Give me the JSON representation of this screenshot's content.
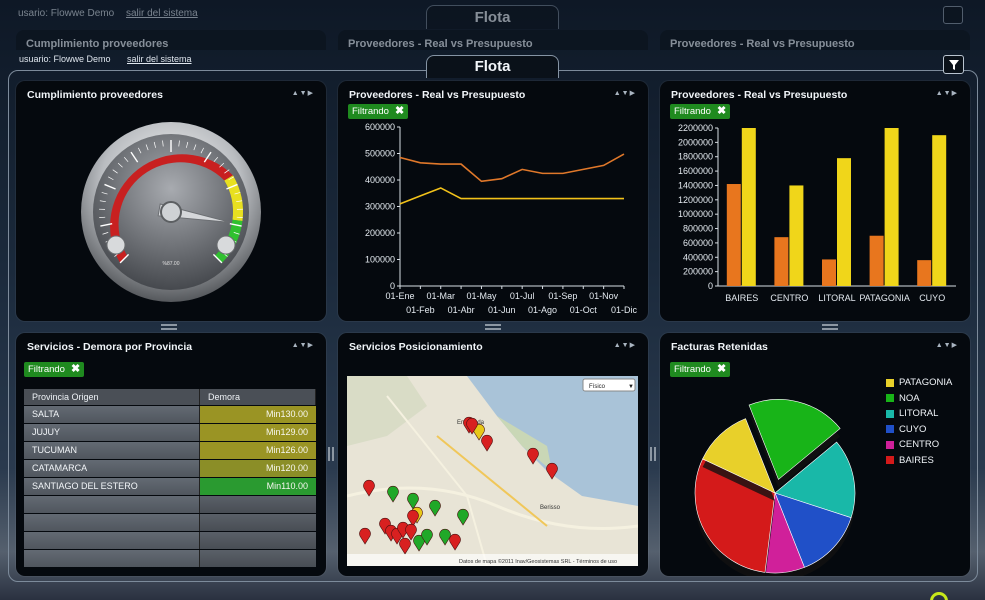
{
  "header": {
    "user_label": "usuario: Flowwe Demo",
    "logout_label": "salir del sistema",
    "title": "Flota",
    "ghost_user_label": "usario: Flowwe Demo",
    "ghost_logout_label": "salir del sistema"
  },
  "ghost_panels": [
    {
      "title": "Cumplimiento proveedores"
    },
    {
      "title": "Proveedores - Real vs Presupuesto"
    },
    {
      "title": "Proveedores - Real vs Presupuesto"
    }
  ],
  "panel_controls": "▲▼▶",
  "filter_chip": {
    "label": "Filtrando",
    "close": "✖"
  },
  "panels": {
    "gauge": {
      "title": "Cumplimiento proveedores",
      "value_fraction": 0.87,
      "inner_label": "%87.00"
    },
    "line": {
      "title": "Proveedores - Real vs Presupuesto"
    },
    "bar": {
      "title": "Proveedores - Real vs Presupuesto"
    },
    "table": {
      "title": "Servicios - Demora por Provincia"
    },
    "map": {
      "title": "Servicios Posicionamiento",
      "map_type": "Físico",
      "credit": "Datos de mapa ©2011 Inav/Geosistemas SRL - Términos de uso",
      "place_labels": [
        "Ensenada",
        "Berisso"
      ]
    },
    "pie": {
      "title": "Facturas Retenidas"
    }
  },
  "table": {
    "columns": [
      "Provincia Origen",
      "Demora"
    ],
    "rows": [
      {
        "provincia": "SALTA",
        "demora": "Min130.00",
        "color": "#9a9424"
      },
      {
        "provincia": "JUJUY",
        "demora": "Min129.00",
        "color": "#9a9424"
      },
      {
        "provincia": "TUCUMAN",
        "demora": "Min126.00",
        "color": "#9a9424"
      },
      {
        "provincia": "CATAMARCA",
        "demora": "Min120.00",
        "color": "#8b8e27"
      },
      {
        "provincia": "SANTIAGO DEL ESTERO",
        "demora": "Min110.00",
        "color": "#2a9a30"
      }
    ],
    "empty_rows": 4
  },
  "chart_data": [
    {
      "type": "line",
      "x": [
        "01-Ene",
        "01-Feb",
        "01-Mar",
        "01-Abr",
        "01-May",
        "01-Jun",
        "01-Jul",
        "01-Ago",
        "01-Sep",
        "01-Oct",
        "01-Nov",
        "01-Dic"
      ],
      "series": [
        {
          "values": [
            485000,
            465000,
            460000,
            460000,
            395000,
            405000,
            440000,
            425000,
            425000,
            440000,
            455000,
            498000
          ],
          "color": "#e0782a"
        },
        {
          "values": [
            310000,
            340000,
            370000,
            330000,
            330000,
            330000,
            330000,
            330000,
            330000,
            330000,
            330000,
            330000
          ],
          "color": "#f2c21a"
        }
      ],
      "ylim": [
        0,
        600000
      ],
      "yticks": [
        0,
        100000,
        200000,
        300000,
        400000,
        500000,
        600000
      ]
    },
    {
      "type": "bar",
      "categories": [
        "BAIRES",
        "CENTRO",
        "LITORAL",
        "PATAGONIA",
        "CUYO"
      ],
      "series": [
        {
          "values": [
            1420000,
            680000,
            370000,
            700000,
            360000
          ],
          "color": "#e8761e"
        },
        {
          "values": [
            2200000,
            1400000,
            1780000,
            2200000,
            2100000
          ],
          "color": "#f0d61a"
        }
      ],
      "ylim": [
        0,
        2200000
      ],
      "yticks": [
        0,
        200000,
        400000,
        600000,
        800000,
        1000000,
        1200000,
        1400000,
        1600000,
        1800000,
        2000000,
        2200000
      ]
    },
    {
      "type": "pie",
      "legend": [
        {
          "label": "PATAGONIA",
          "color": "#e8d02a"
        },
        {
          "label": "NOA",
          "color": "#18b418"
        },
        {
          "label": "LITORAL",
          "color": "#19b8a8"
        },
        {
          "label": "CUYO",
          "color": "#2050c8"
        },
        {
          "label": "CENTRO",
          "color": "#d0209a"
        },
        {
          "label": "BAIRES",
          "color": "#d41a1a"
        }
      ],
      "slices": [
        {
          "label": "NOA",
          "value": 20,
          "color": "#18b418",
          "exploded": true
        },
        {
          "label": "LITORAL",
          "value": 16,
          "color": "#19b8a8"
        },
        {
          "label": "CUYO",
          "value": 14,
          "color": "#2050c8"
        },
        {
          "label": "CENTRO",
          "value": 8,
          "color": "#d0209a"
        },
        {
          "label": "BAIRES",
          "value": 30,
          "color": "#d41a1a"
        },
        {
          "label": "PATAGONIA",
          "value": 12,
          "color": "#e8d02a"
        }
      ]
    }
  ]
}
